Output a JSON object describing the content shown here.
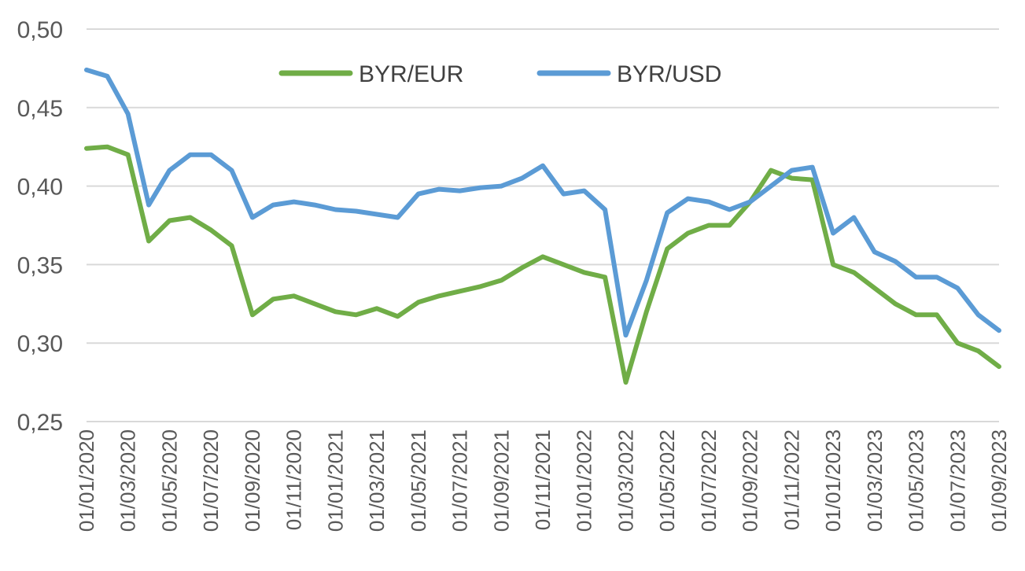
{
  "chart_data": {
    "type": "line",
    "title": "",
    "xlabel": "",
    "ylabel": "",
    "ylim": [
      0.25,
      0.5
    ],
    "yticks": [
      "0,50",
      "0,45",
      "0,40",
      "0,35",
      "0,30",
      "0,25"
    ],
    "ytick_values": [
      0.5,
      0.45,
      0.4,
      0.35,
      0.3,
      0.25
    ],
    "xticks": [
      "01/01/2020",
      "01/03/2020",
      "01/05/2020",
      "01/07/2020",
      "01/09/2020",
      "01/11/2020",
      "01/01/2021",
      "01/03/2021",
      "01/05/2021",
      "01/07/2021",
      "01/09/2021",
      "01/11/2021",
      "01/01/2022",
      "01/03/2022",
      "01/05/2022",
      "01/07/2022",
      "01/09/2022",
      "01/11/2022",
      "01/01/2023",
      "01/03/2023",
      "01/05/2023",
      "01/07/2023",
      "01/09/2023"
    ],
    "grid": true,
    "legend_position": "top",
    "x": [
      "2020-01",
      "2020-02",
      "2020-03",
      "2020-04",
      "2020-05",
      "2020-06",
      "2020-07",
      "2020-08",
      "2020-09",
      "2020-10",
      "2020-11",
      "2020-12",
      "2021-01",
      "2021-02",
      "2021-03",
      "2021-04",
      "2021-05",
      "2021-06",
      "2021-07",
      "2021-08",
      "2021-09",
      "2021-10",
      "2021-11",
      "2021-12",
      "2022-01",
      "2022-02",
      "2022-03",
      "2022-04",
      "2022-05",
      "2022-06",
      "2022-07",
      "2022-08",
      "2022-09",
      "2022-10",
      "2022-11",
      "2022-12",
      "2023-01",
      "2023-02",
      "2023-03",
      "2023-04",
      "2023-05",
      "2023-06",
      "2023-07",
      "2023-08",
      "2023-09"
    ],
    "series": [
      {
        "name": "BYR/EUR",
        "color": "#70ad47",
        "values": [
          0.424,
          0.425,
          0.42,
          0.365,
          0.378,
          0.38,
          0.372,
          0.362,
          0.318,
          0.328,
          0.33,
          0.325,
          0.32,
          0.318,
          0.322,
          0.317,
          0.326,
          0.33,
          0.333,
          0.336,
          0.34,
          0.348,
          0.355,
          0.35,
          0.345,
          0.342,
          0.275,
          0.32,
          0.36,
          0.37,
          0.375,
          0.375,
          0.39,
          0.41,
          0.405,
          0.404,
          0.35,
          0.345,
          0.335,
          0.325,
          0.318,
          0.318,
          0.3,
          0.295,
          0.285
        ]
      },
      {
        "name": "BYR/USD",
        "color": "#5b9bd5",
        "values": [
          0.474,
          0.47,
          0.446,
          0.388,
          0.41,
          0.42,
          0.42,
          0.41,
          0.38,
          0.388,
          0.39,
          0.388,
          0.385,
          0.384,
          0.382,
          0.38,
          0.395,
          0.398,
          0.397,
          0.399,
          0.4,
          0.405,
          0.413,
          0.395,
          0.397,
          0.385,
          0.305,
          0.34,
          0.383,
          0.392,
          0.39,
          0.385,
          0.39,
          0.4,
          0.41,
          0.412,
          0.37,
          0.38,
          0.358,
          0.352,
          0.342,
          0.342,
          0.335,
          0.318,
          0.308
        ]
      }
    ]
  }
}
